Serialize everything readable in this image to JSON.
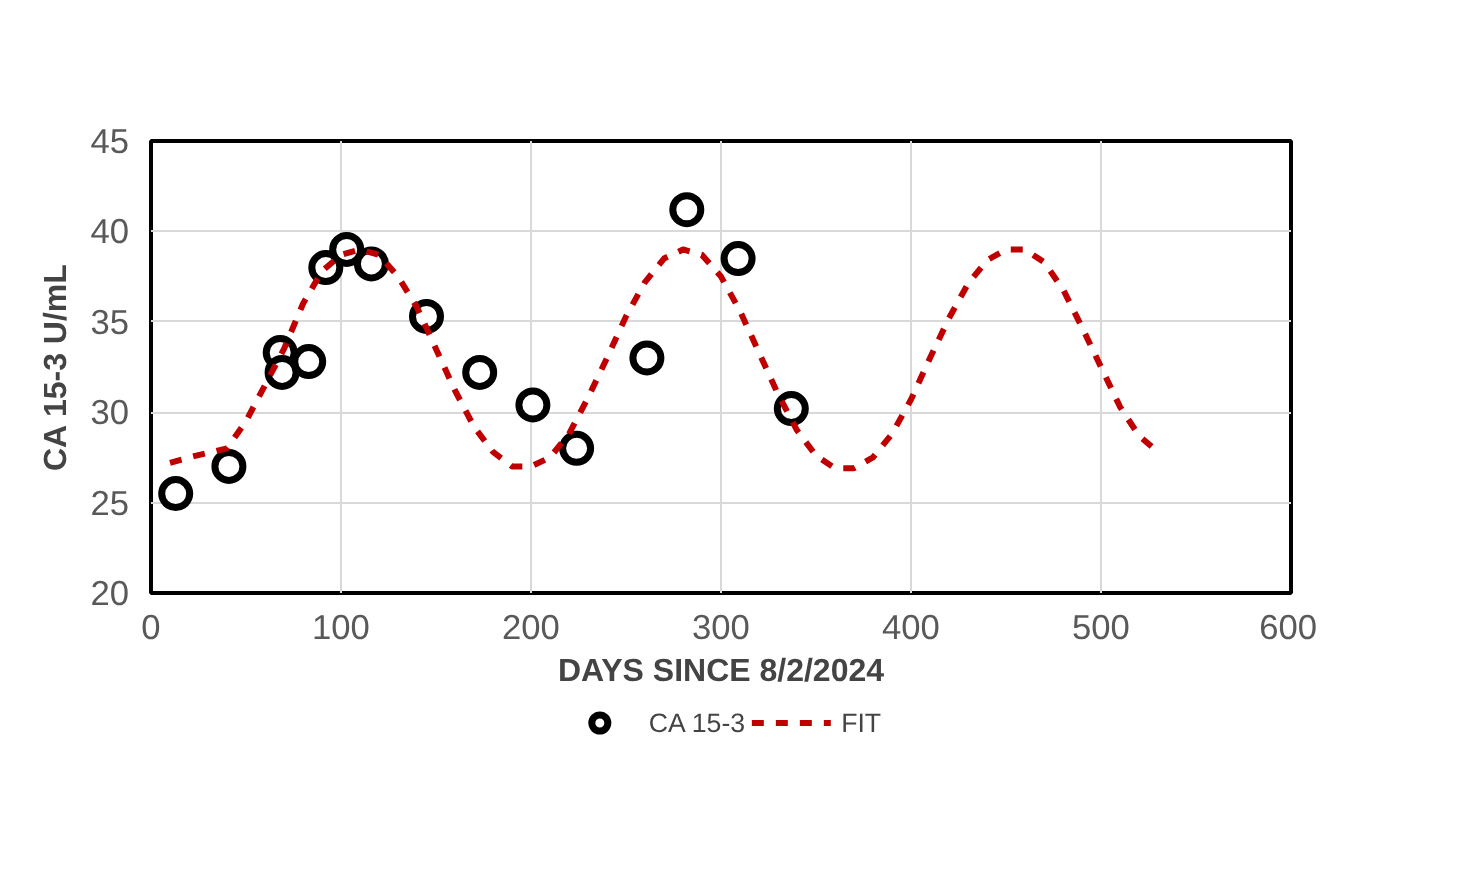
{
  "chart_data": {
    "type": "scatter",
    "xlabel": "DAYS SINCE 8/2/2024",
    "ylabel": "CA 15-3 U/mL",
    "xlim": [
      0,
      600
    ],
    "xticks": [
      0,
      100,
      200,
      300,
      400,
      500,
      600
    ],
    "ylim": [
      20,
      45
    ],
    "yticks": [
      20,
      25,
      30,
      35,
      40,
      45
    ],
    "grid": true,
    "legend": "bottom",
    "series": [
      {
        "name": "CA 15-3",
        "type": "scatter",
        "color": "#000000",
        "marker": "circle",
        "x": [
          13,
          41,
          68,
          69,
          83,
          92,
          103,
          116,
          145,
          173,
          201,
          224,
          261,
          282,
          309,
          337
        ],
        "values": [
          25.5,
          27,
          33.3,
          32.2,
          32.8,
          38,
          39,
          38.2,
          35.3,
          32.2,
          30.4,
          28,
          33,
          41.2,
          38.5,
          30.2
        ]
      },
      {
        "name": "FIT",
        "type": "line",
        "color": "#c00000",
        "line_style": "dashed",
        "x": [
          10,
          20,
          40,
          50,
          60,
          70,
          80,
          90,
          100,
          110,
          120,
          130,
          140,
          150,
          160,
          170,
          180,
          190,
          200,
          210,
          220,
          230,
          240,
          250,
          260,
          270,
          280,
          290,
          300,
          310,
          320,
          330,
          340,
          350,
          360,
          370,
          380,
          390,
          400,
          410,
          420,
          430,
          440,
          450,
          460,
          470,
          480,
          490,
          500,
          510,
          520,
          530
        ],
        "values": [
          27.2,
          27.5,
          28,
          29.5,
          31.5,
          33.5,
          36,
          37.8,
          38.7,
          39,
          38.7,
          37.5,
          35.8,
          33.5,
          31.2,
          29.2,
          27.8,
          27,
          27,
          27.5,
          28.8,
          30.8,
          33,
          35.3,
          37.2,
          38.5,
          39,
          38.7,
          37.5,
          35.6,
          33.3,
          31,
          29,
          27.6,
          26.9,
          26.9,
          27.5,
          28.8,
          30.7,
          33,
          35.2,
          37.1,
          38.4,
          39,
          39,
          38.3,
          36.8,
          34.7,
          32.5,
          30.3,
          28.7,
          27.8
        ]
      }
    ]
  }
}
